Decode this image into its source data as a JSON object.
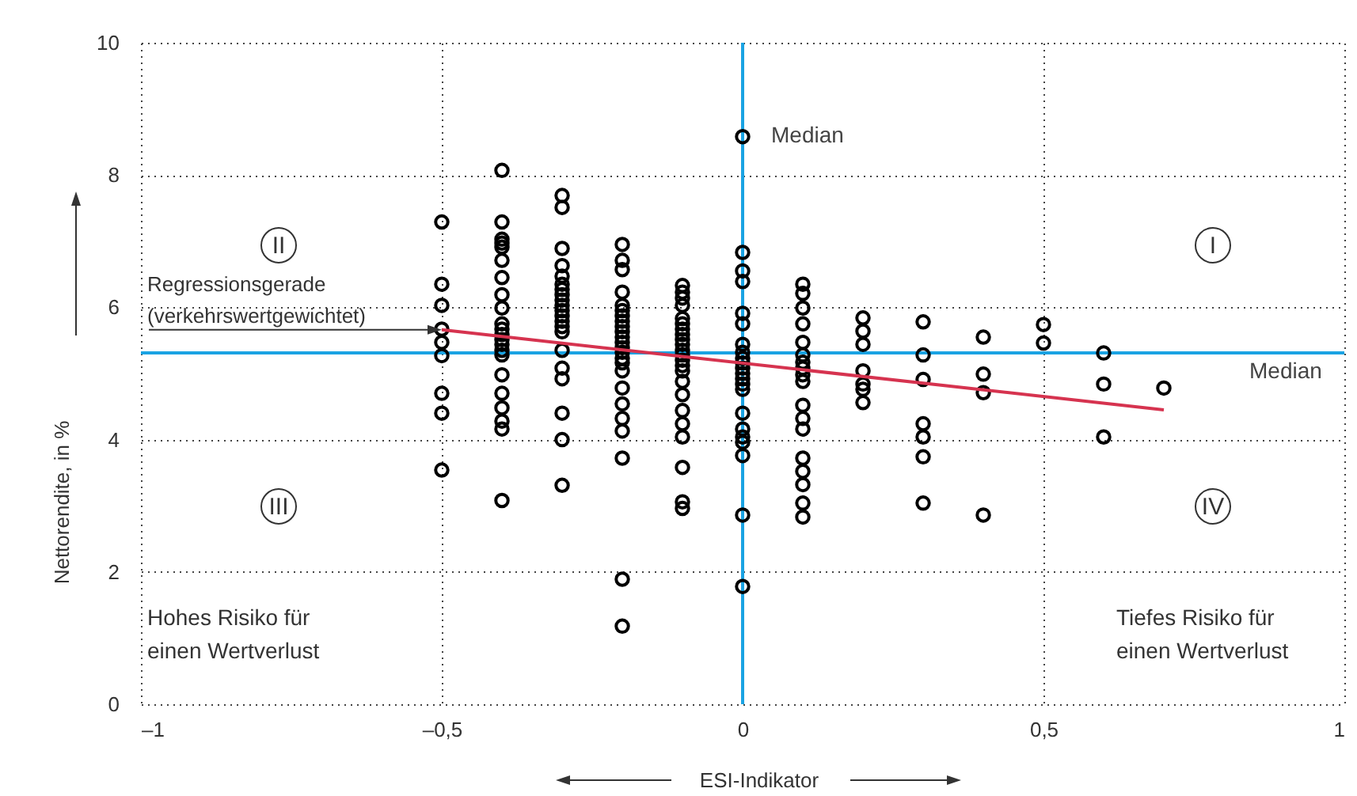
{
  "chart_data": {
    "type": "scatter",
    "xlabel": "ESI-Indikator",
    "ylabel": "Nettorendite, in %",
    "xlim": [
      -1,
      1
    ],
    "xticks": [
      {
        "value": -1,
        "label": "–1"
      },
      {
        "value": -0.5,
        "label": "–0,5"
      },
      0,
      {
        "value": 0.5,
        "label": "0,5"
      },
      1
    ],
    "ylim": [
      0,
      10
    ],
    "yticks": [
      0,
      2,
      4,
      6,
      8,
      10
    ],
    "grid": true,
    "series": [
      {
        "type": "scatter",
        "color": "#000000",
        "marker": "circle",
        "x": [
          -0.5,
          -0.5,
          -0.5,
          -0.5,
          -0.5,
          -0.5,
          -0.5,
          -0.5,
          -0.5,
          -0.4,
          -0.4,
          -0.4,
          -0.4,
          -0.4,
          -0.4,
          -0.4,
          -0.4,
          -0.4,
          -0.4,
          -0.4,
          -0.4,
          -0.4,
          -0.4,
          -0.4,
          -0.4,
          -0.4,
          -0.4,
          -0.4,
          -0.4,
          -0.4,
          -0.4,
          -0.3,
          -0.3,
          -0.3,
          -0.3,
          -0.3,
          -0.3,
          -0.3,
          -0.3,
          -0.3,
          -0.3,
          -0.3,
          -0.3,
          -0.3,
          -0.3,
          -0.3,
          -0.3,
          -0.3,
          -0.3,
          -0.3,
          -0.3,
          -0.3,
          -0.2,
          -0.2,
          -0.2,
          -0.2,
          -0.2,
          -0.2,
          -0.2,
          -0.2,
          -0.2,
          -0.2,
          -0.2,
          -0.2,
          -0.2,
          -0.2,
          -0.2,
          -0.2,
          -0.2,
          -0.2,
          -0.2,
          -0.2,
          -0.2,
          -0.2,
          -0.2,
          -0.2,
          -0.1,
          -0.1,
          -0.1,
          -0.1,
          -0.1,
          -0.1,
          -0.1,
          -0.1,
          -0.1,
          -0.1,
          -0.1,
          -0.1,
          -0.1,
          -0.1,
          -0.1,
          -0.1,
          -0.1,
          -0.1,
          -0.1,
          -0.1,
          -0.1,
          -0.1,
          -0.1,
          0,
          0,
          0,
          0,
          0,
          0,
          0,
          0,
          0,
          0,
          0,
          0,
          0,
          0,
          0,
          0,
          0,
          0,
          0,
          0,
          0,
          0,
          0.1,
          0.1,
          0.1,
          0.1,
          0.1,
          0.1,
          0.1,
          0.1,
          0.1,
          0.1,
          0.1,
          0.1,
          0.1,
          0.1,
          0.1,
          0.1,
          0.1,
          0.1,
          0.2,
          0.2,
          0.2,
          0.2,
          0.2,
          0.2,
          0.2,
          0.3,
          0.3,
          0.3,
          0.3,
          0.3,
          0.3,
          0.3,
          0.4,
          0.4,
          0.4,
          0.4,
          0.5,
          0.5,
          0.6,
          0.6,
          0.6,
          0.7
        ],
        "values": [
          7.29,
          6.35,
          6.03,
          5.67,
          5.47,
          5.27,
          4.7,
          4.4,
          3.54,
          8.07,
          7.29,
          7.03,
          6.97,
          6.91,
          6.71,
          6.45,
          6.19,
          5.99,
          5.75,
          5.67,
          5.59,
          5.51,
          5.44,
          5.35,
          5.28,
          4.98,
          4.7,
          4.48,
          4.28,
          4.16,
          3.08,
          7.69,
          7.51,
          6.89,
          6.63,
          6.47,
          6.35,
          6.27,
          6.19,
          6.11,
          6.03,
          5.95,
          5.87,
          5.79,
          5.71,
          5.63,
          5.35,
          5.08,
          4.92,
          4.4,
          4.0,
          3.31,
          6.95,
          6.71,
          6.57,
          6.23,
          6.03,
          5.95,
          5.87,
          5.79,
          5.71,
          5.63,
          5.55,
          5.47,
          5.39,
          5.32,
          5.23,
          5.16,
          5.04,
          4.78,
          4.54,
          4.32,
          4.13,
          3.72,
          1.89,
          1.18,
          6.33,
          6.23,
          6.14,
          6.03,
          5.83,
          5.75,
          5.67,
          5.59,
          5.51,
          5.44,
          5.35,
          5.28,
          5.2,
          5.12,
          5.04,
          4.88,
          4.68,
          4.44,
          4.24,
          4.04,
          3.58,
          3.06,
          2.96,
          8.58,
          6.83,
          6.55,
          6.39,
          5.91,
          5.75,
          5.44,
          5.32,
          5.23,
          5.16,
          5.08,
          5.0,
          4.92,
          4.84,
          4.76,
          4.4,
          4.16,
          4.04,
          3.96,
          3.76,
          2.86,
          1.78,
          6.35,
          6.21,
          5.99,
          5.75,
          5.47,
          5.28,
          5.17,
          5.08,
          4.98,
          4.88,
          4.52,
          4.32,
          4.16,
          3.72,
          3.52,
          3.32,
          3.04,
          2.83,
          5.84,
          5.64,
          5.44,
          5.04,
          4.84,
          4.76,
          4.56,
          5.78,
          5.28,
          4.91,
          4.24,
          4.04,
          3.74,
          3.04,
          5.55,
          4.99,
          4.71,
          2.86,
          5.74,
          5.46,
          5.31,
          4.84,
          4.04,
          4.78
        ]
      },
      {
        "type": "line",
        "color": "#d6334f",
        "marker": "none",
        "x": [
          -0.5,
          0.7
        ],
        "values": [
          5.66,
          4.45
        ]
      }
    ],
    "ref_lines": [
      {
        "axis": "x",
        "value": 0,
        "label": "Median",
        "color": "#1aa3e3"
      },
      {
        "axis": "y",
        "value": 5.31,
        "label": "Median",
        "color": "#1aa3e3"
      }
    ],
    "annotations": [
      {
        "text": "Regressionsgerade (verkehrswertgewichtet)",
        "x": -0.5,
        "y": 5.66
      },
      "I",
      "II",
      "III",
      "IV",
      "Hohes Risiko für\neinen Wertverlust",
      "Tiefes Risiko für\neinen Wertverlust"
    ]
  }
}
